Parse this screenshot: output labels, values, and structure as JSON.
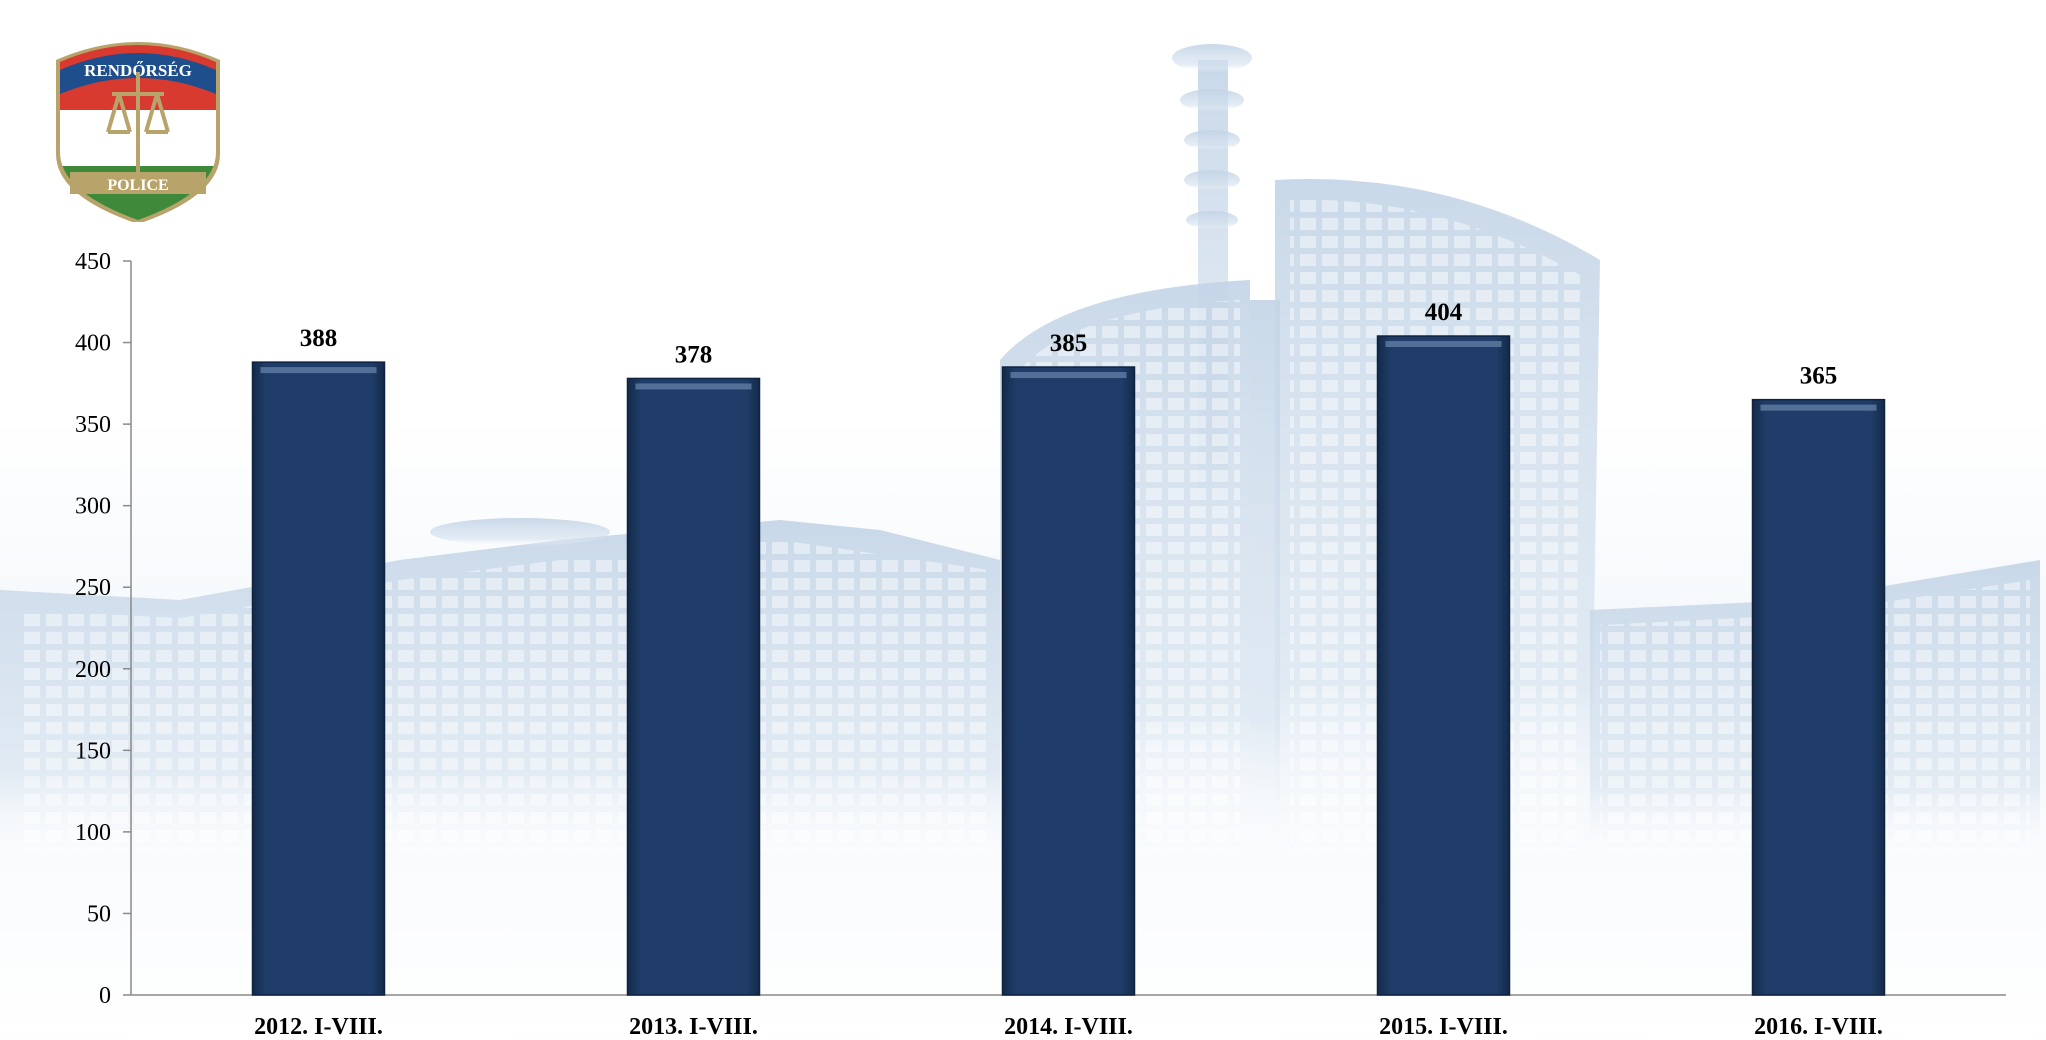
{
  "logo": {
    "top_text": "RENDŐRSÉG",
    "bottom_text": "POLICE",
    "colors": {
      "red": "#d93a2f",
      "white": "#ffffff",
      "green": "#3f8a3a",
      "blue": "#1f4e8c",
      "gold": "#b8a46a"
    }
  },
  "colors": {
    "bar": "#1d3a64",
    "bar_edge": "#0f2240",
    "axis": "#8a8a8a",
    "background_building": "#c9d8e8"
  },
  "chart_data": {
    "type": "bar",
    "categories": [
      "2012. I-VIII.",
      "2013. I-VIII.",
      "2014. I-VIII.",
      "2015. I-VIII.",
      "2016. I-VIII."
    ],
    "values": [
      388,
      378,
      385,
      404,
      365
    ],
    "value_labels": [
      "388",
      "378",
      "385",
      "404",
      "365"
    ],
    "title": "",
    "xlabel": "",
    "ylabel": "",
    "ylim": [
      0,
      450
    ],
    "yticks": [
      0,
      50,
      100,
      150,
      200,
      250,
      300,
      350,
      400,
      450
    ],
    "ytick_labels": [
      "0",
      "50",
      "100",
      "150",
      "200",
      "250",
      "300",
      "350",
      "400",
      "450"
    ],
    "grid": false,
    "legend": "none"
  }
}
